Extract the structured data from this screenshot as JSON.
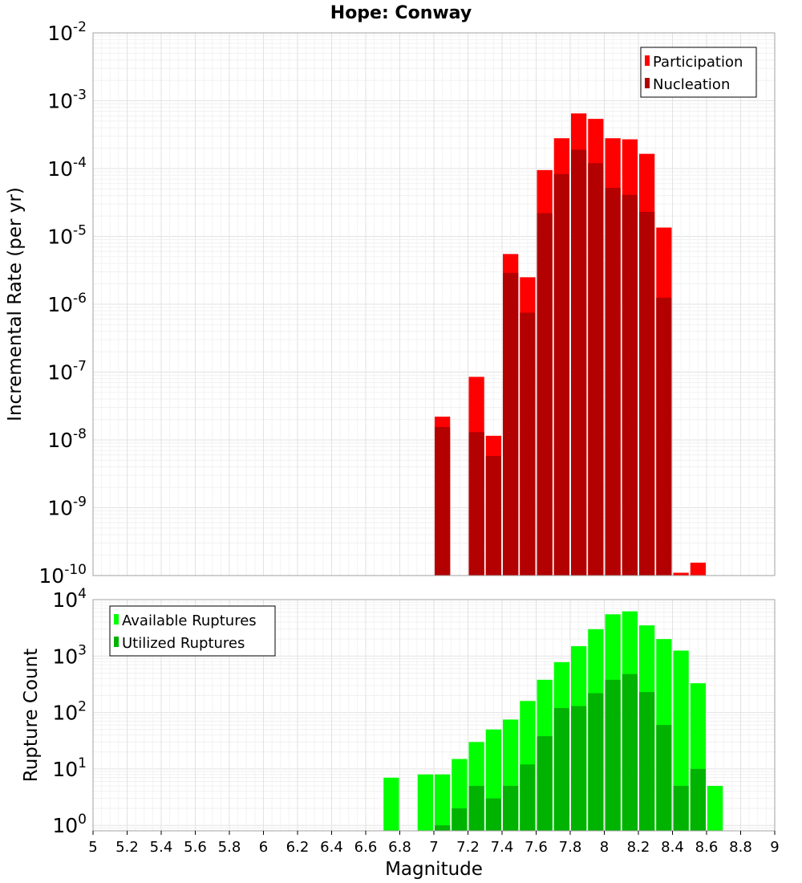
{
  "chart_data": [
    {
      "type": "bar",
      "title": "Hope: Conway",
      "ylabel": "Incremental Rate (per yr)",
      "yscale": "log",
      "ylim": [
        1e-10,
        0.01
      ],
      "xlim": [
        5,
        9
      ],
      "legend_position": "top-right",
      "bar_width": 0.1,
      "series": [
        {
          "name": "Participation",
          "color": "#ff0000",
          "points": [
            {
              "x": 7.05,
              "y": 2.2e-08
            },
            {
              "x": 7.25,
              "y": 8.5e-08
            },
            {
              "x": 7.35,
              "y": 1.15e-08
            },
            {
              "x": 7.45,
              "y": 5.5e-06
            },
            {
              "x": 7.55,
              "y": 2.5e-06
            },
            {
              "x": 7.65,
              "y": 9.5e-05
            },
            {
              "x": 7.75,
              "y": 0.00028
            },
            {
              "x": 7.85,
              "y": 0.00065
            },
            {
              "x": 7.95,
              "y": 0.00054
            },
            {
              "x": 8.05,
              "y": 0.00028
            },
            {
              "x": 8.15,
              "y": 0.00027
            },
            {
              "x": 8.25,
              "y": 0.000165
            },
            {
              "x": 8.35,
              "y": 1.35e-05
            },
            {
              "x": 8.45,
              "y": 1.1e-10
            },
            {
              "x": 8.55,
              "y": 1.55e-10
            }
          ]
        },
        {
          "name": "Nucleation",
          "color": "#b30000",
          "points": [
            {
              "x": 7.05,
              "y": 1.55e-08
            },
            {
              "x": 7.25,
              "y": 1.3e-08
            },
            {
              "x": 7.35,
              "y": 5.8e-09
            },
            {
              "x": 7.45,
              "y": 2.9e-06
            },
            {
              "x": 7.55,
              "y": 7.5e-07
            },
            {
              "x": 7.65,
              "y": 2.2e-05
            },
            {
              "x": 7.75,
              "y": 8.3e-05
            },
            {
              "x": 7.85,
              "y": 0.00019
            },
            {
              "x": 7.95,
              "y": 0.00012
            },
            {
              "x": 8.05,
              "y": 5.2e-05
            },
            {
              "x": 8.15,
              "y": 4.1e-05
            },
            {
              "x": 8.25,
              "y": 2.3e-05
            },
            {
              "x": 8.35,
              "y": 1.25e-06
            }
          ]
        }
      ]
    },
    {
      "type": "bar",
      "ylabel": "Rupture Count",
      "xlabel": "Magnitude",
      "yscale": "log",
      "ylim": [
        0.8,
        10000
      ],
      "xlim": [
        5,
        9
      ],
      "xticks": [
        "5",
        "5.2",
        "5.4",
        "5.6",
        "5.8",
        "6",
        "6.2",
        "6.4",
        "6.6",
        "6.8",
        "7",
        "7.2",
        "7.4",
        "7.6",
        "7.8",
        "8",
        "8.2",
        "8.4",
        "8.6",
        "8.8",
        "9"
      ],
      "legend_position": "top-left",
      "bar_width": 0.1,
      "series": [
        {
          "name": "Available Ruptures",
          "color": "#00ff00",
          "points": [
            {
              "x": 6.75,
              "y": 7
            },
            {
              "x": 6.95,
              "y": 8
            },
            {
              "x": 7.05,
              "y": 8
            },
            {
              "x": 7.15,
              "y": 15
            },
            {
              "x": 7.25,
              "y": 30
            },
            {
              "x": 7.35,
              "y": 50
            },
            {
              "x": 7.45,
              "y": 75
            },
            {
              "x": 7.55,
              "y": 160
            },
            {
              "x": 7.65,
              "y": 380
            },
            {
              "x": 7.75,
              "y": 780
            },
            {
              "x": 7.85,
              "y": 1500
            },
            {
              "x": 7.95,
              "y": 3000
            },
            {
              "x": 8.05,
              "y": 5500
            },
            {
              "x": 8.15,
              "y": 6200
            },
            {
              "x": 8.25,
              "y": 3500
            },
            {
              "x": 8.35,
              "y": 2000
            },
            {
              "x": 8.45,
              "y": 1250
            },
            {
              "x": 8.55,
              "y": 330
            },
            {
              "x": 8.65,
              "y": 5
            }
          ]
        },
        {
          "name": "Utilized Ruptures",
          "color": "#00b300",
          "points": [
            {
              "x": 7.05,
              "y": 1
            },
            {
              "x": 7.15,
              "y": 2
            },
            {
              "x": 7.25,
              "y": 5
            },
            {
              "x": 7.35,
              "y": 3
            },
            {
              "x": 7.45,
              "y": 5
            },
            {
              "x": 7.55,
              "y": 12
            },
            {
              "x": 7.65,
              "y": 38
            },
            {
              "x": 7.75,
              "y": 120
            },
            {
              "x": 7.85,
              "y": 130
            },
            {
              "x": 7.95,
              "y": 220
            },
            {
              "x": 8.05,
              "y": 380
            },
            {
              "x": 8.15,
              "y": 480
            },
            {
              "x": 8.25,
              "y": 230
            },
            {
              "x": 8.35,
              "y": 60
            },
            {
              "x": 8.45,
              "y": 5
            },
            {
              "x": 8.55,
              "y": 10
            }
          ]
        }
      ]
    }
  ]
}
